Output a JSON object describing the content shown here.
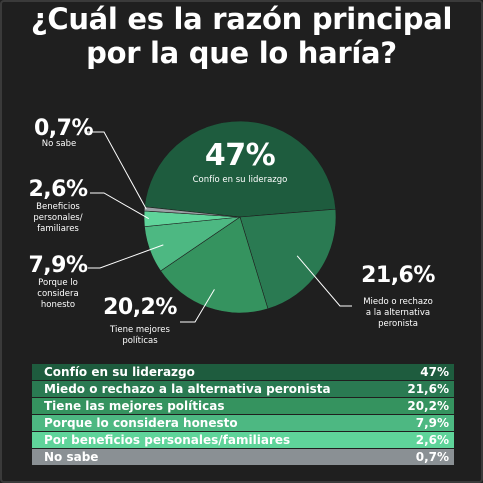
{
  "title": [
    "¿Cuál es la razón principal",
    "por la que lo haría?"
  ],
  "chart_data": {
    "type": "pie",
    "slices": [
      {
        "label": "Confío en su liderazgo",
        "value": 47,
        "display": "47%",
        "desc": "Confío en su liderazgo",
        "color": "#1e5c3e"
      },
      {
        "label": "Miedo o rechazo a la alternativa peronista",
        "value": 21.6,
        "display": "21,6%",
        "desc": "Miedo o rechazo a la alternativa peronista",
        "color": "#2a7a52"
      },
      {
        "label": "Tiene las mejores políticas",
        "value": 20.2,
        "display": "20,2%",
        "desc": "Tiene mejores políticas",
        "color": "#35935f"
      },
      {
        "label": "Porque lo considera honesto",
        "value": 7.9,
        "display": "7,9%",
        "desc": "Porque lo considera honesto",
        "color": "#4db882"
      },
      {
        "label": "Por beneficios personales/familiares",
        "value": 2.6,
        "display": "2,6%",
        "desc": "Beneficios personales/ familiares",
        "color": "#5fd49a"
      },
      {
        "label": "No sabe",
        "value": 0.7,
        "display": "0,7%",
        "desc": "No sabe",
        "color": "#9aa0a4"
      }
    ]
  },
  "table": [
    {
      "label": "Confío en su liderazgo",
      "value": "47%",
      "color": "#1e5c3e"
    },
    {
      "label": "Miedo o rechazo a la alternativa peronista",
      "value": "21,6%",
      "color": "#2a7a52"
    },
    {
      "label": "Tiene las mejores políticas",
      "value": "20,2%",
      "color": "#35935f"
    },
    {
      "label": "Porque lo considera honesto",
      "value": "7,9%",
      "color": "#4db882"
    },
    {
      "label": "Por beneficios personales/familiares",
      "value": "2,6%",
      "color": "#5fd49a"
    },
    {
      "label": "No sabe",
      "value": "0,7%",
      "color": "#8a9094"
    }
  ]
}
